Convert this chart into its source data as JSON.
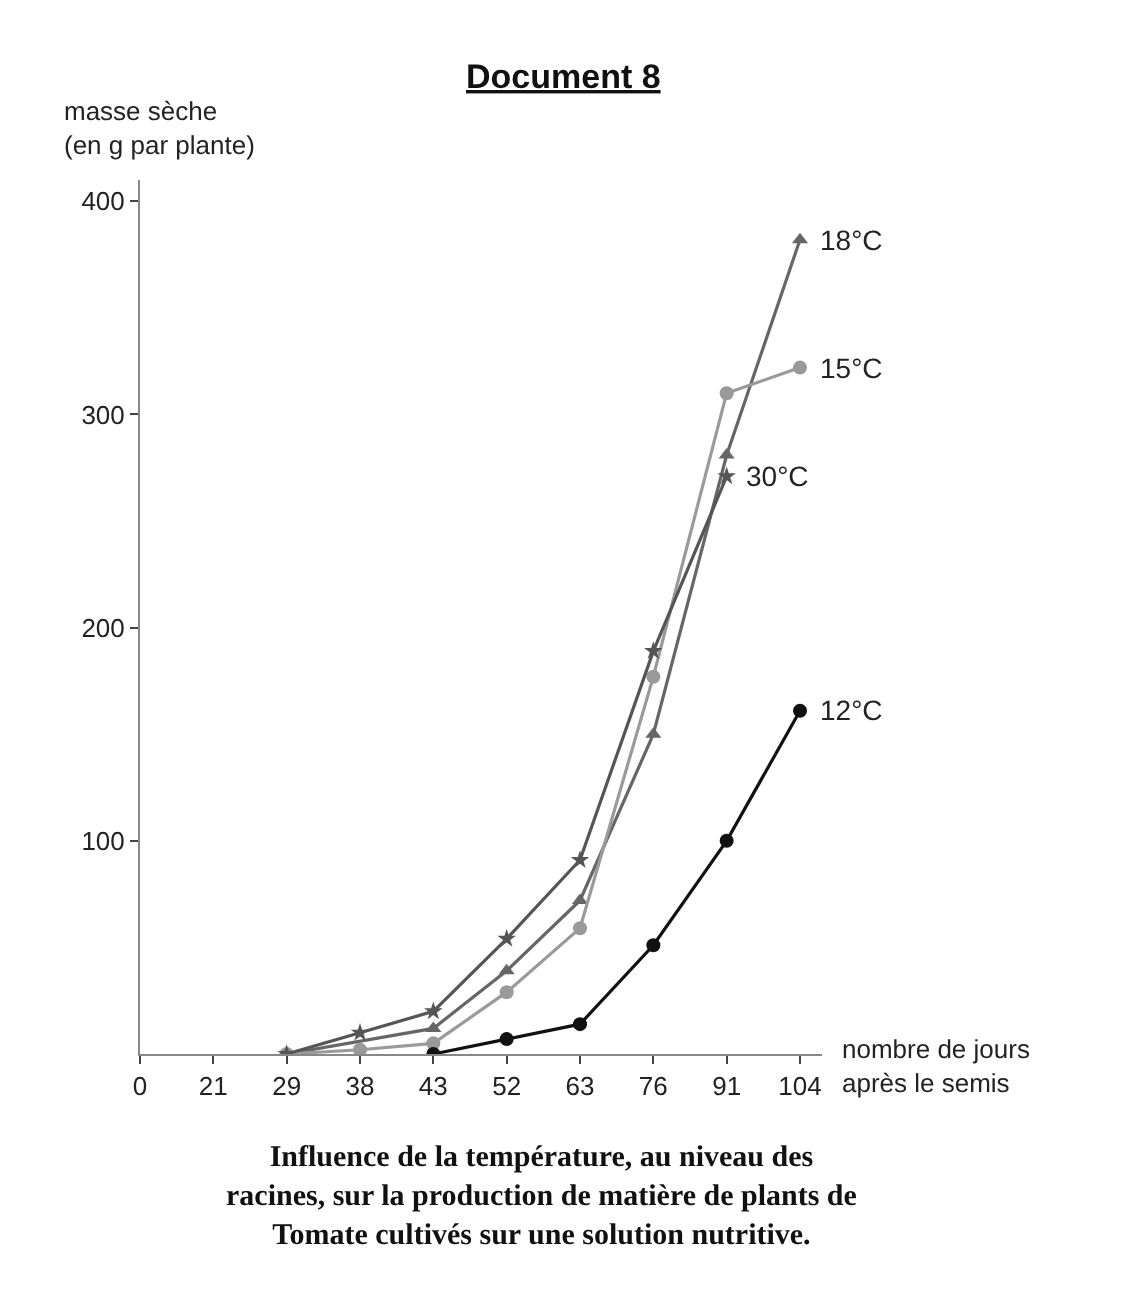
{
  "chart_data": {
    "type": "line",
    "title": "Document 8",
    "ylabel": "masse sèche\n(en g par plante)",
    "xlabel": "nombre de jours\naprès le semis",
    "categories": [
      "0",
      "21",
      "29",
      "38",
      "43",
      "52",
      "63",
      "76",
      "91",
      "104"
    ],
    "series": [
      {
        "name": "18°C",
        "color": "#666666",
        "marker": "triangle",
        "values": [
          null,
          null,
          0,
          null,
          12,
          39,
          72,
          150,
          281,
          382
        ]
      },
      {
        "name": "15°C",
        "color": "#9a9a9a",
        "marker": "circle",
        "values": [
          null,
          null,
          0,
          2,
          5,
          29,
          59,
          177,
          310,
          322
        ]
      },
      {
        "name": "30°C",
        "color": "#555555",
        "marker": "star",
        "values": [
          null,
          null,
          0,
          10,
          20,
          54,
          91,
          189,
          271,
          null
        ]
      },
      {
        "name": "12°C",
        "color": "#111111",
        "marker": "circle",
        "values": [
          null,
          null,
          null,
          null,
          0,
          7,
          14,
          51,
          100,
          161
        ]
      }
    ],
    "ylim": [
      0,
      410
    ],
    "yticks": [
      100,
      200,
      300,
      400
    ],
    "legend": false,
    "annotations": [
      "Influence de la température, au niveau des\nracines, sur la production de matière de plants de\nTomate cultivés sur une solution nutritive."
    ]
  }
}
